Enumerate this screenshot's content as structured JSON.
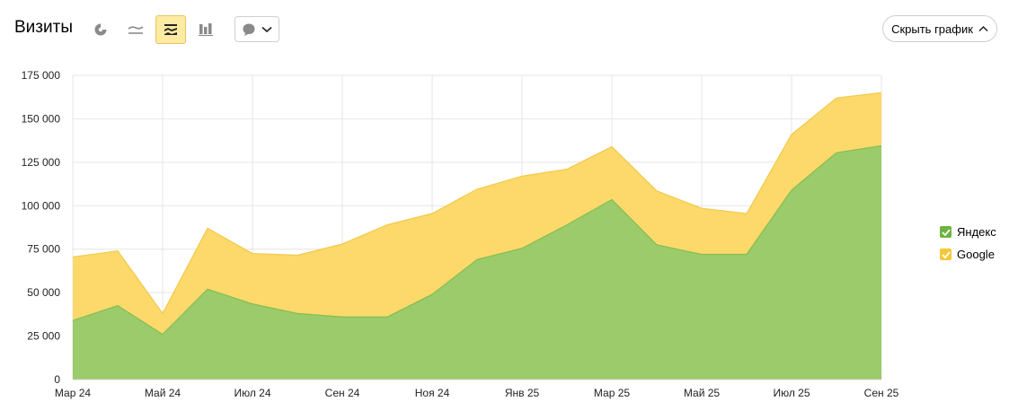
{
  "header": {
    "title": "Визиты",
    "hide_chart_label": "Скрыть график"
  },
  "toolbar": {
    "icons": [
      "pie-chart-icon",
      "line-chart-icon",
      "stacked-area-icon",
      "stacked-bar-icon",
      "comment-icon"
    ],
    "active": "stacked-area-icon"
  },
  "colors": {
    "yandex": "#9bcb6a",
    "google": "#fdd96b",
    "grid": "#e5e5e5"
  },
  "chart_data": {
    "type": "area",
    "stacked": true,
    "x": [
      "Мар 24",
      "Апр 24",
      "Май 24",
      "Июн 24",
      "Июл 24",
      "Авг 24",
      "Сен 24",
      "Окт 24",
      "Ноя 24",
      "Дек 24",
      "Янв 25",
      "Фев 25",
      "Мар 25",
      "Апр 25",
      "Май 25",
      "Июн 25",
      "Июл 25",
      "Авг 25",
      "Сен 25"
    ],
    "x_tick_labels": [
      "Мар 24",
      "Май 24",
      "Июл 24",
      "Сен 24",
      "Ноя 24",
      "Янв 25",
      "Мар 25",
      "Май 25",
      "Июл 25",
      "Сен 25"
    ],
    "series": [
      {
        "name": "Яндекс",
        "color": "#9bcb6a",
        "values": [
          34000,
          42500,
          26000,
          52000,
          43500,
          38000,
          36000,
          36000,
          49000,
          69000,
          75500,
          89000,
          103500,
          77500,
          72000,
          72000,
          109000,
          130500,
          134500
        ]
      },
      {
        "name": "Google",
        "color": "#fdd96b",
        "values": [
          36500,
          31500,
          12000,
          35000,
          29000,
          33500,
          42000,
          53000,
          46500,
          40500,
          41500,
          32000,
          30500,
          31000,
          26500,
          23500,
          32000,
          31500,
          30500
        ]
      }
    ],
    "y_ticks": [
      "0",
      "25 000",
      "50 000",
      "75 000",
      "100 000",
      "125 000",
      "150 000",
      "175 000"
    ],
    "ylim": [
      0,
      175000
    ],
    "grid": true,
    "legend_position": "right"
  }
}
